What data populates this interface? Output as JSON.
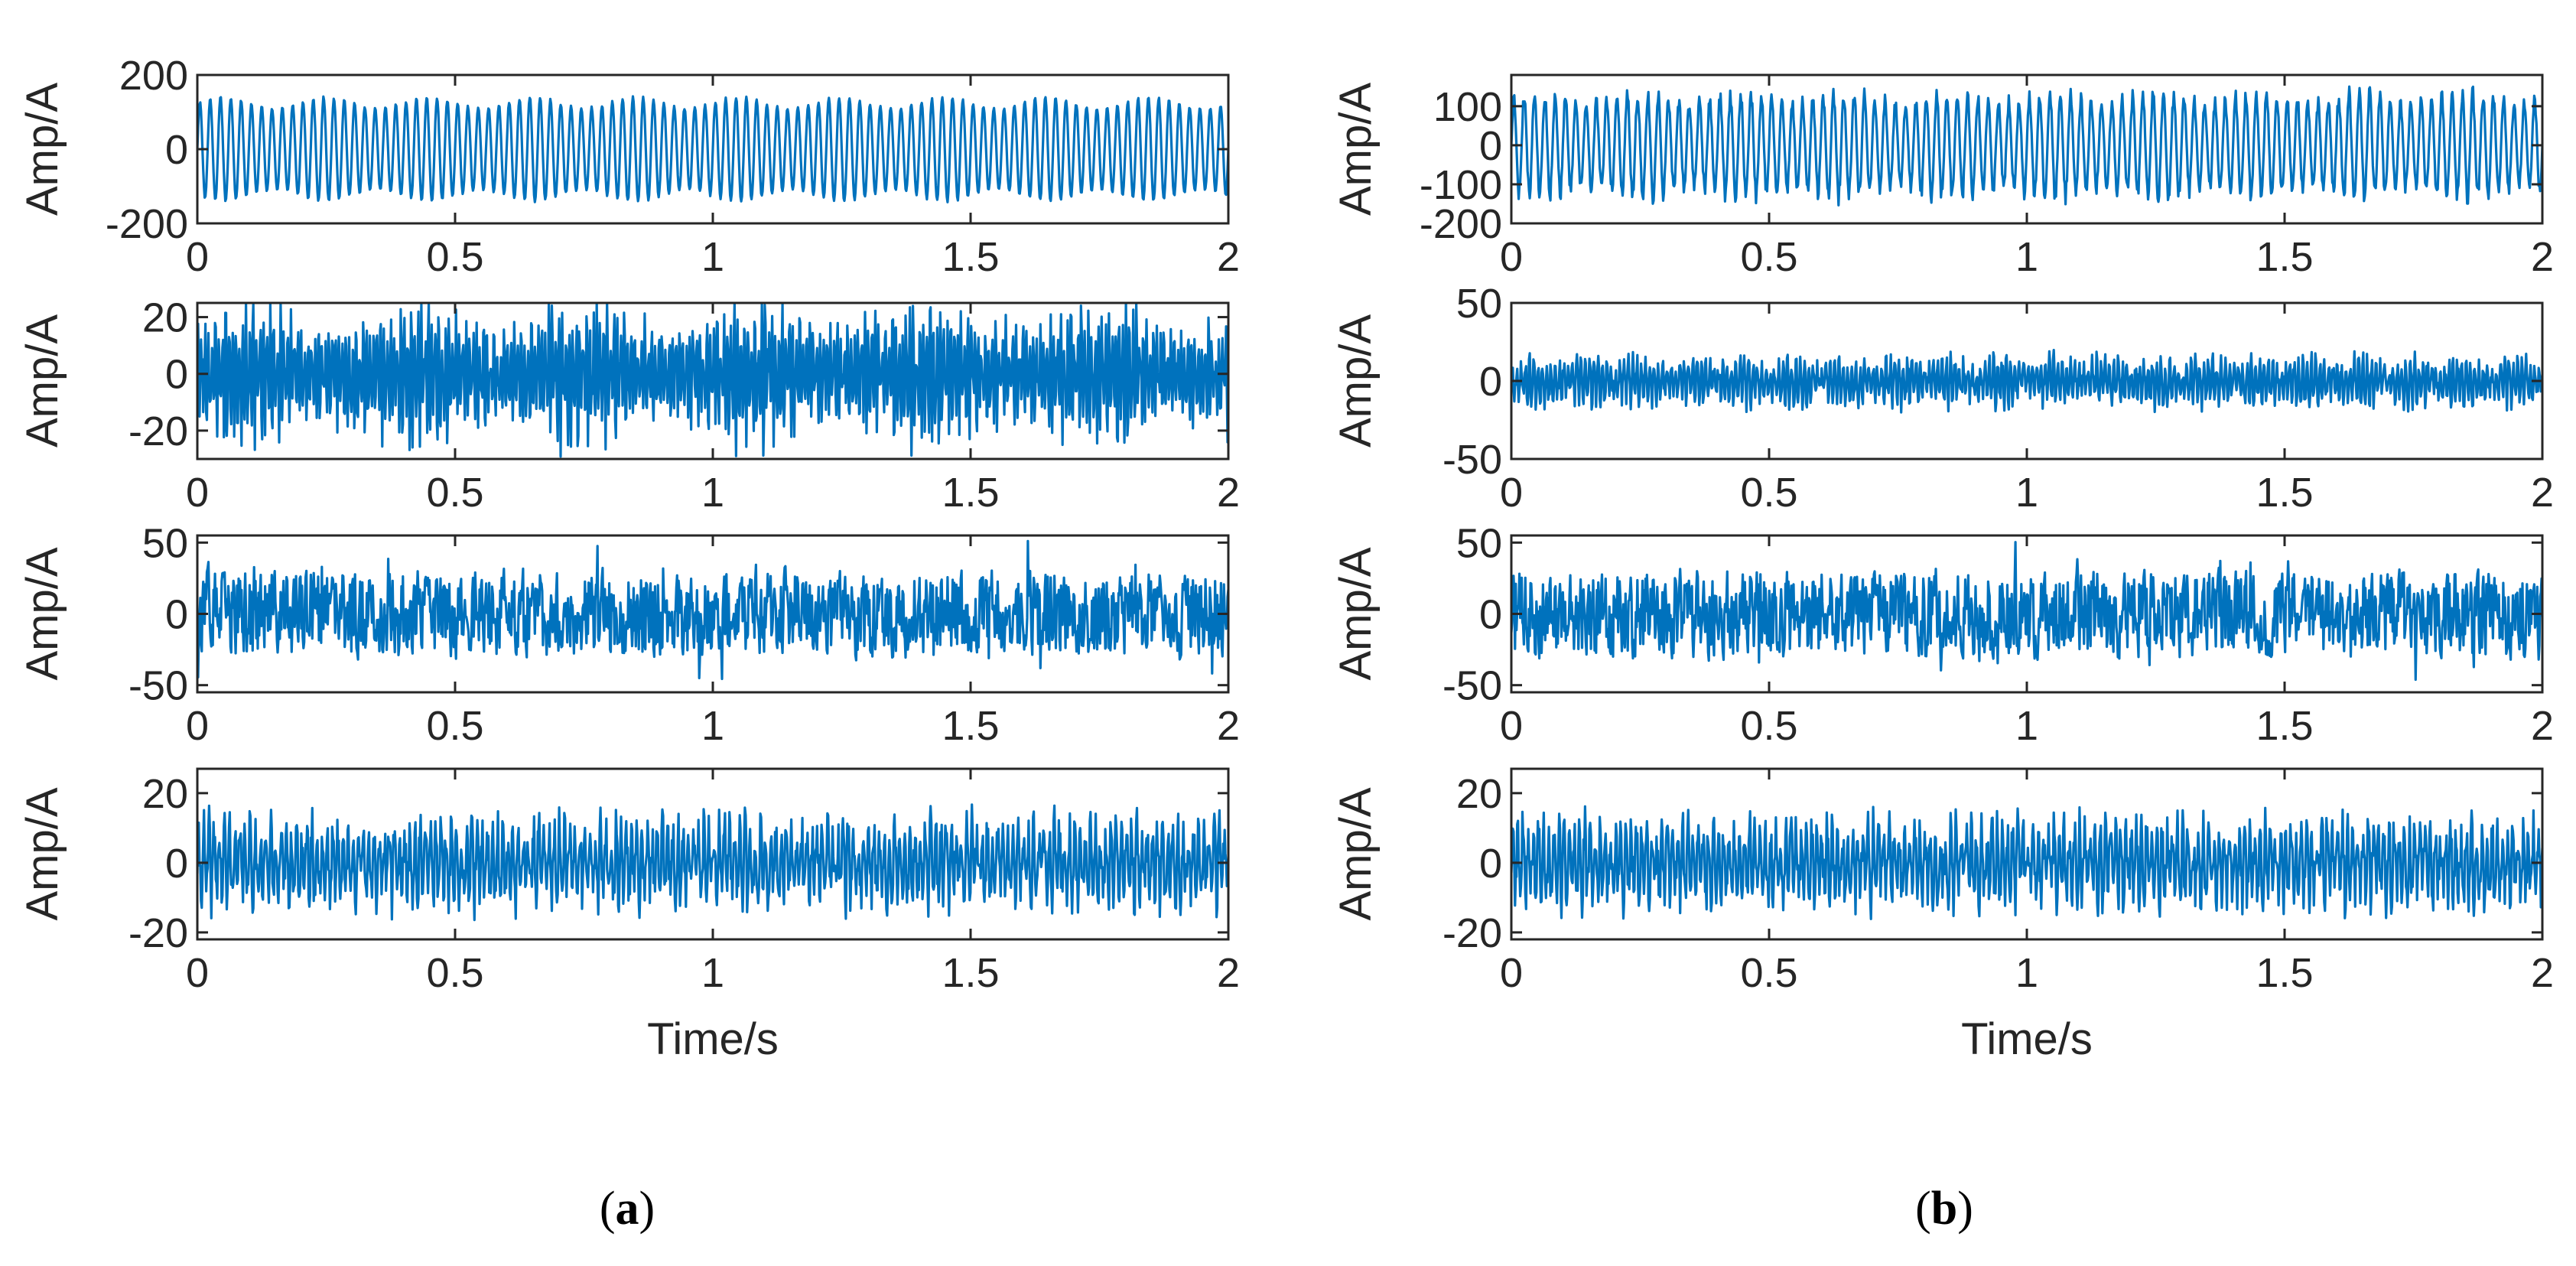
{
  "chart_data": [
    {
      "panel": "a",
      "type": "line",
      "title": "",
      "subplot": 1,
      "xlabel": "",
      "ylabel": "Amp/A",
      "xlim": [
        0,
        2
      ],
      "ylim": [
        -200,
        200
      ],
      "xticks": [
        0,
        0.5,
        1,
        1.5,
        2
      ],
      "xtick_labels": [
        "0",
        "0.5",
        "1",
        "1.5",
        "2"
      ],
      "yticks": [
        -200,
        0,
        200
      ],
      "ytick_labels": [
        "-200",
        "0",
        "200"
      ],
      "color": "#0072BD",
      "signal": {
        "style": "sine",
        "amp": 125,
        "freq": 50,
        "mod_freq": 5,
        "mod_depth": 0.12,
        "noise": 0.03,
        "seed": 11
      }
    },
    {
      "panel": "a",
      "type": "line",
      "title": "",
      "subplot": 2,
      "xlabel": "",
      "ylabel": "Amp/A",
      "xlim": [
        0,
        2
      ],
      "ylim": [
        -30,
        25
      ],
      "xticks": [
        0,
        0.5,
        1,
        1.5,
        2
      ],
      "xtick_labels": [
        "0",
        "0.5",
        "1",
        "1.5",
        "2"
      ],
      "yticks": [
        -20,
        0,
        20
      ],
      "ytick_labels": [
        "-20",
        "0",
        "20"
      ],
      "color": "#0072BD",
      "signal": {
        "style": "dense",
        "amp": 20,
        "freq": 150,
        "mod_freq": 3,
        "mod_depth": 0.2,
        "noise": 0.35,
        "seed": 23
      }
    },
    {
      "panel": "a",
      "type": "line",
      "title": "",
      "subplot": 3,
      "xlabel": "",
      "ylabel": "Amp/A",
      "xlim": [
        0,
        2
      ],
      "ylim": [
        -55,
        55
      ],
      "xticks": [
        0,
        0.5,
        1,
        1.5,
        2
      ],
      "xtick_labels": [
        "0",
        "0.5",
        "1",
        "1.5",
        "2"
      ],
      "yticks": [
        -50,
        0,
        50
      ],
      "ytick_labels": [
        "-50",
        "0",
        "50"
      ],
      "color": "#0072BD",
      "signal": {
        "style": "noise",
        "amp": 30,
        "freq": 250,
        "mod_freq": 0,
        "mod_depth": 0,
        "noise": 1,
        "seed": 37
      }
    },
    {
      "panel": "a",
      "type": "line",
      "title": "",
      "subplot": 4,
      "xlabel": "Time/s",
      "ylabel": "Amp/A",
      "xlim": [
        0,
        2
      ],
      "ylim": [
        -22,
        27
      ],
      "xticks": [
        0,
        0.5,
        1,
        1.5,
        2
      ],
      "xtick_labels": [
        "0",
        "0.5",
        "1",
        "1.5",
        "2"
      ],
      "yticks": [
        -20,
        0,
        20
      ],
      "ytick_labels": [
        "-20",
        "0",
        "20"
      ],
      "color": "#0072BD",
      "signal": {
        "style": "burst",
        "amp": 14,
        "freq": 100,
        "mod_freq": 25,
        "mod_depth": 0.45,
        "noise": 0.5,
        "seed": 41
      }
    },
    {
      "panel": "b",
      "type": "line",
      "title": "",
      "subplot": 1,
      "xlabel": "",
      "ylabel": "Amp/A",
      "xlim": [
        0,
        2
      ],
      "ylim": [
        -200,
        180
      ],
      "xticks": [
        0,
        0.5,
        1,
        1.5,
        2
      ],
      "xtick_labels": [
        "0",
        "0.5",
        "1",
        "1.5",
        "2"
      ],
      "yticks": [
        -200,
        -100,
        0,
        100
      ],
      "ytick_labels": [
        "-200",
        "-100",
        "0",
        "100"
      ],
      "color": "#0072BD",
      "signal": {
        "style": "sine",
        "amp": 120,
        "freq": 50,
        "mod_freq": 5,
        "mod_depth": 0.1,
        "noise": 0.18,
        "seed": 53
      }
    },
    {
      "panel": "b",
      "type": "line",
      "title": "",
      "subplot": 2,
      "xlabel": "",
      "ylabel": "Amp/A",
      "xlim": [
        0,
        2
      ],
      "ylim": [
        -50,
        50
      ],
      "xticks": [
        0,
        0.5,
        1,
        1.5,
        2
      ],
      "xtick_labels": [
        "0",
        "0.5",
        "1",
        "1.5",
        "2"
      ],
      "yticks": [
        -50,
        0,
        50
      ],
      "ytick_labels": [
        "-50",
        "0",
        "50"
      ],
      "color": "#0072BD",
      "signal": {
        "style": "burst",
        "amp": 16,
        "freq": 120,
        "mod_freq": 10,
        "mod_depth": 0.6,
        "noise": 0.45,
        "seed": 67
      }
    },
    {
      "panel": "b",
      "type": "line",
      "title": "",
      "subplot": 3,
      "xlabel": "",
      "ylabel": "Amp/A",
      "xlim": [
        0,
        2
      ],
      "ylim": [
        -55,
        55
      ],
      "xticks": [
        0,
        0.5,
        1,
        1.5,
        2
      ],
      "xtick_labels": [
        "0",
        "0.5",
        "1",
        "1.5",
        "2"
      ],
      "yticks": [
        -50,
        0,
        50
      ],
      "ytick_labels": [
        "-50",
        "0",
        "50"
      ],
      "color": "#0072BD",
      "signal": {
        "style": "noise",
        "amp": 30,
        "freq": 250,
        "mod_freq": 0,
        "mod_depth": 0,
        "noise": 1,
        "seed": 71
      }
    },
    {
      "panel": "b",
      "type": "line",
      "title": "",
      "subplot": 4,
      "xlabel": "Time/s",
      "ylabel": "Amp/A",
      "xlim": [
        0,
        2
      ],
      "ylim": [
        -22,
        27
      ],
      "xticks": [
        0,
        0.5,
        1,
        1.5,
        2
      ],
      "xtick_labels": [
        "0",
        "0.5",
        "1",
        "1.5",
        "2"
      ],
      "yticks": [
        -20,
        0,
        20
      ],
      "ytick_labels": [
        "-20",
        "0",
        "20"
      ],
      "color": "#0072BD",
      "signal": {
        "style": "burst",
        "amp": 14,
        "freq": 100,
        "mod_freq": 25,
        "mod_depth": 0.45,
        "noise": 0.5,
        "seed": 89
      }
    }
  ],
  "panel_labels": [
    {
      "open": "(",
      "letter": "a",
      "close": ")"
    },
    {
      "open": "(",
      "letter": "b",
      "close": ")"
    }
  ]
}
